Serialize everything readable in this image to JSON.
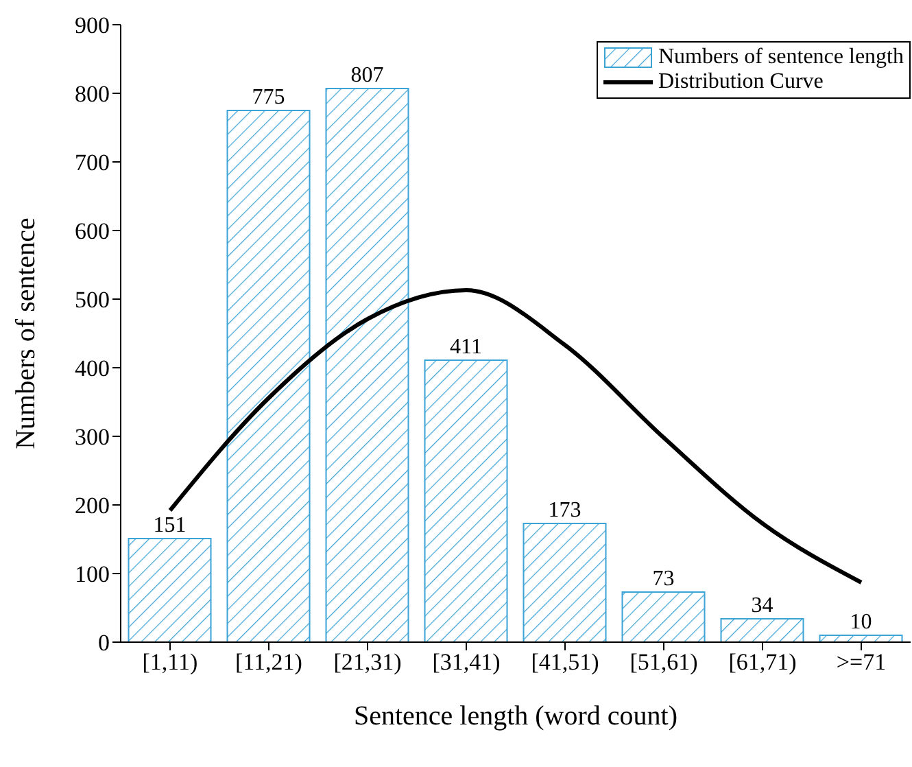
{
  "chart_data": {
    "type": "bar",
    "xlabel": "Sentence length (word count)",
    "ylabel": "Numbers of sentence",
    "categories": [
      "[1,11)",
      "[11,21)",
      "[21,31)",
      "[31,41)",
      "[41,51)",
      "[51,61)",
      "[61,71)",
      ">=71"
    ],
    "series": [
      {
        "name": "Numbers of sentence length",
        "color": "#3ba3d6",
        "values": [
          151,
          775,
          807,
          411,
          173,
          73,
          34,
          10
        ],
        "value_labels": [
          "151",
          "775",
          "807",
          "411",
          "173",
          "73",
          "34",
          "10"
        ]
      },
      {
        "name": "Distribution Curve",
        "type": "line",
        "color": "#000000",
        "values": [
          192,
          356,
          471,
          513,
          433,
          298,
          173,
          87
        ]
      }
    ],
    "ylim": [
      0,
      900
    ],
    "yticks": [
      0,
      100,
      200,
      300,
      400,
      500,
      600,
      700,
      800,
      900
    ],
    "legend": "top right",
    "marker": "none",
    "line_style": "solid"
  }
}
